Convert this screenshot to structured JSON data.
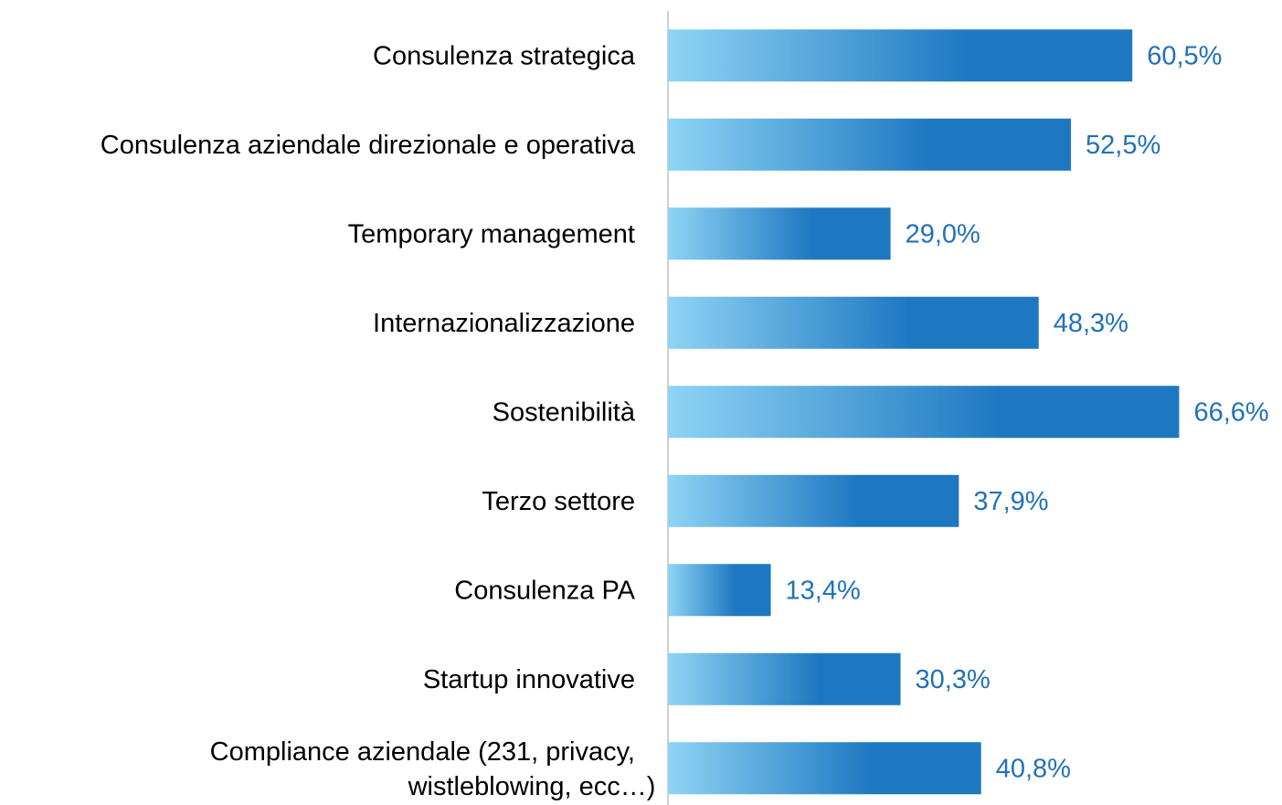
{
  "chart_data": {
    "type": "hbar",
    "categories": [
      "Consulenza strategica",
      "Consulenza aziendale direzionale e operativa",
      "Temporary management",
      "Internazionalizzazione",
      "Sostenibilità",
      "Terzo settore",
      "Consulenza PA",
      "Startup innovative",
      "Compliance aziendale (231, privacy, wistleblowing, ecc…)"
    ],
    "values": [
      60.5,
      52.5,
      29.0,
      48.3,
      66.6,
      37.9,
      13.4,
      30.3,
      40.8
    ],
    "value_labels": [
      "60,5%",
      "52,5%",
      "29,0%",
      "48,3%",
      "66,6%",
      "37,9%",
      "13,4%",
      "30,3%",
      "40,8%"
    ],
    "xlim": [
      0,
      80
    ],
    "color": "#1e78c1",
    "gradient_start": "#8ed4f5",
    "label_color": "#2271b8"
  }
}
